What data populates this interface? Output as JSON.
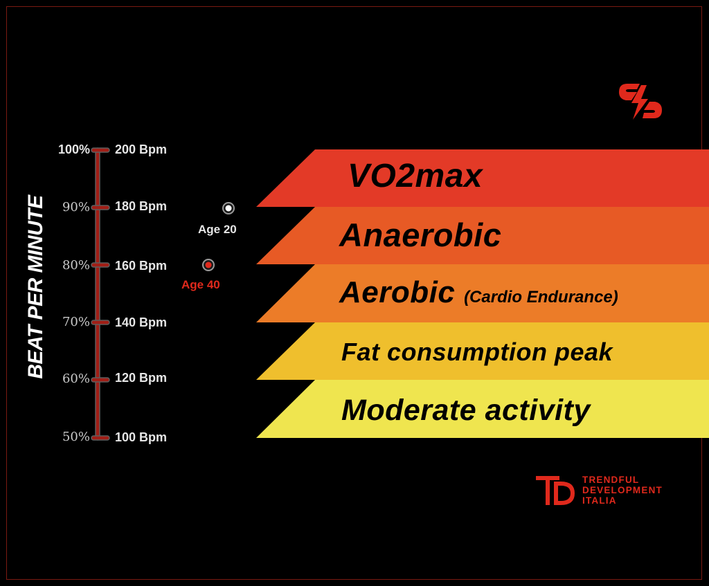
{
  "axis_title": "BEAT PER MINUTE",
  "colors": {
    "background": "#000000",
    "accent_red": "#e0291c",
    "zone_vo2max": "#e33a27",
    "zone_anaerobic": "#e75a25",
    "zone_aerobic": "#ec7c28",
    "zone_fat": "#efbf2d",
    "zone_moderate": "#efe54f"
  },
  "scale": [
    {
      "percent": "100%",
      "bpm": "200 Bpm"
    },
    {
      "percent": "90%",
      "bpm": "180 Bpm"
    },
    {
      "percent": "80%",
      "bpm": "160 Bpm"
    },
    {
      "percent": "70%",
      "bpm": "140 Bpm"
    },
    {
      "percent": "60%",
      "bpm": "120 Bpm"
    },
    {
      "percent": "50%",
      "bpm": "100 Bpm"
    }
  ],
  "markers": [
    {
      "label": "Age 20",
      "bpm": 180,
      "color": "#ffffff"
    },
    {
      "label": "Age 40",
      "bpm": 160,
      "color": "#e0291c"
    }
  ],
  "zones": [
    {
      "name": "VO2max",
      "subtitle": ""
    },
    {
      "name": "Anaerobic",
      "subtitle": ""
    },
    {
      "name": "Aerobic",
      "subtitle": "(Cardio Endurance)"
    },
    {
      "name": "Fat consumption peak",
      "subtitle": ""
    },
    {
      "name": "Moderate activity",
      "subtitle": ""
    }
  ],
  "brand": {
    "icon": "lightning-s-logo",
    "monogram": "TD-monogram-logo",
    "lines": [
      "TRENDFUL",
      "DEVELOPMENT",
      "ITALIA"
    ]
  }
}
